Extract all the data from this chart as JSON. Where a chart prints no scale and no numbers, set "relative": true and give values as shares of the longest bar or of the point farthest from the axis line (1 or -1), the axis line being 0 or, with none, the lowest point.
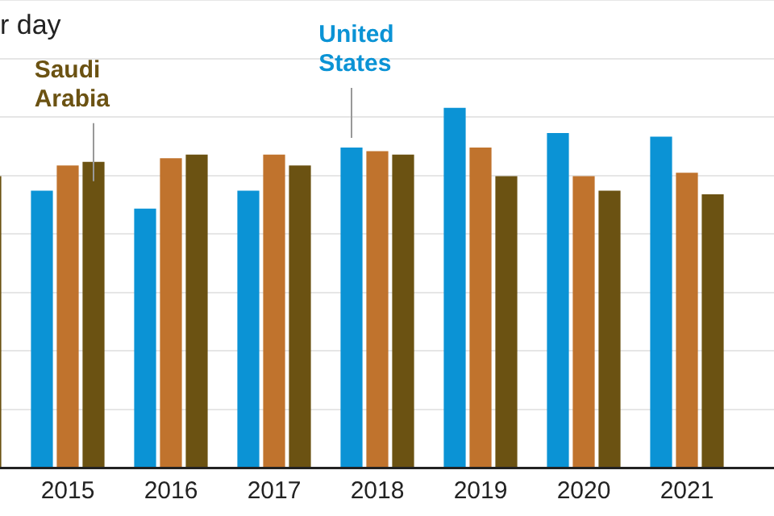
{
  "chart_data": {
    "type": "bar",
    "title": "r day",
    "relative": true,
    "grid": "y",
    "legend": false,
    "categories": [
      null,
      "2015",
      "2016",
      "2017",
      "2018",
      "2019",
      "2020",
      "2021",
      null
    ],
    "series": [
      {
        "name": "United States",
        "color": "#0b93d5",
        "values": [
          null,
          0.77,
          0.72,
          0.77,
          0.89,
          1,
          0.93,
          0.92,
          null
        ]
      },
      {
        "color": "#c0732d",
        "values": [
          null,
          0.84,
          0.86,
          0.87,
          0.88,
          0.89,
          0.81,
          0.82,
          null
        ]
      },
      {
        "name": "Saudi Arabia",
        "color": "#6b5212",
        "values": [
          0.81,
          0.85,
          0.87,
          0.84,
          0.87,
          0.81,
          0.77,
          0.76,
          null
        ]
      }
    ]
  }
}
